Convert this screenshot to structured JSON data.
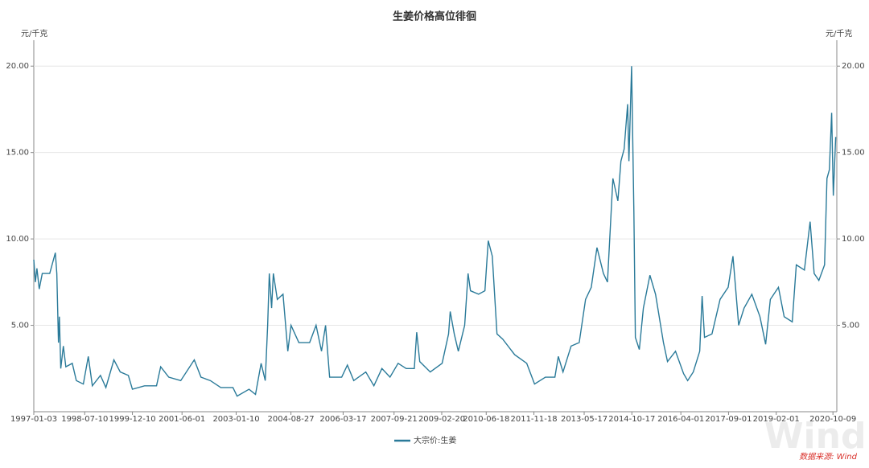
{
  "chart_data": {
    "type": "line",
    "title": "生姜价格高位徘徊",
    "ylabel": "元/千克",
    "y2label": "元/千克",
    "x": [
      "1997-01-03",
      "1997-01-20",
      "1997-02-06",
      "1997-03-03",
      "1997-04-05",
      "1997-06-25",
      "1997-08-25",
      "1997-09-10",
      "1997-09-28",
      "1997-10-08",
      "1997-10-23",
      "1997-11-20",
      "1997-12-17",
      "1998-02-25",
      "1998-04-10",
      "1998-06-25",
      "1998-08-18",
      "1998-10-01",
      "1998-12-28",
      "1999-02-25",
      "1999-05-23",
      "1999-07-31",
      "1999-10-27",
      "1999-12-10",
      "2000-04-20",
      "2000-08-28",
      "2000-10-12",
      "2001-01-08",
      "2001-05-18",
      "2001-10-12",
      "2001-12-24",
      "2002-04-05",
      "2002-07-27",
      "2002-12-06",
      "2003-01-20",
      "2003-05-30",
      "2003-08-08",
      "2003-10-08",
      "2003-11-22",
      "2003-12-18",
      "2004-01-05",
      "2004-01-30",
      "2004-02-18",
      "2004-04-01",
      "2004-06-02",
      "2004-07-24",
      "2004-08-28",
      "2004-11-21",
      "2005-03-18",
      "2005-05-27",
      "2005-07-25",
      "2005-09-07",
      "2005-10-21",
      "2006-03-01",
      "2006-05-02",
      "2006-07-10",
      "2006-11-18",
      "2007-02-14",
      "2007-05-12",
      "2007-08-08",
      "2007-11-04",
      "2008-01-31",
      "2008-04-28",
      "2008-05-24",
      "2008-06-26",
      "2008-10-18",
      "2009-02-24",
      "2009-05-05",
      "2009-05-23",
      "2009-07-06",
      "2009-08-19",
      "2009-10-27",
      "2009-12-03",
      "2009-12-29",
      "2010-03-27",
      "2010-06-04",
      "2010-07-10",
      "2010-08-23",
      "2010-10-13",
      "2010-12-14",
      "2011-04-23",
      "2011-09-01",
      "2011-11-25",
      "2012-03-22",
      "2012-07-03",
      "2012-08-09",
      "2012-09-29",
      "2012-12-26",
      "2013-03-24",
      "2013-06-01",
      "2013-08-02",
      "2013-10-03",
      "2013-12-12",
      "2014-01-25",
      "2014-03-25",
      "2014-05-18",
      "2014-06-20",
      "2014-07-25",
      "2014-09-01",
      "2014-09-15",
      "2014-10-14",
      "2014-11-08",
      "2014-11-24",
      "2015-01-06",
      "2015-02-19",
      "2015-05-01",
      "2015-07-01",
      "2015-09-25",
      "2015-11-08",
      "2016-02-03",
      "2016-05-01",
      "2016-06-14",
      "2016-08-14",
      "2016-10-23",
      "2016-11-18",
      "2016-12-14",
      "2017-03-05",
      "2017-06-01",
      "2017-08-28",
      "2017-10-19",
      "2017-12-20",
      "2018-02-17",
      "2018-05-12",
      "2018-08-08",
      "2018-10-09",
      "2018-11-29",
      "2019-02-25",
      "2019-04-28",
      "2019-07-25",
      "2019-09-07",
      "2019-12-04",
      "2020-02-04",
      "2020-03-19",
      "2020-05-09",
      "2020-07-10",
      "2020-08-05",
      "2020-08-31",
      "2020-09-25",
      "2020-10-13",
      "2020-11-08"
    ],
    "series": [
      {
        "name": "大宗价:生姜",
        "color": "#2a7a99",
        "values": [
          8.8,
          7.5,
          8.3,
          7.1,
          8.0,
          8.0,
          9.2,
          8.0,
          4.0,
          5.5,
          2.5,
          3.8,
          2.6,
          2.8,
          1.8,
          1.6,
          3.2,
          1.5,
          2.1,
          1.4,
          3.0,
          2.3,
          2.1,
          1.3,
          1.5,
          1.5,
          2.6,
          2.0,
          1.8,
          3.0,
          2.0,
          1.8,
          1.4,
          1.4,
          0.9,
          1.3,
          1.0,
          2.8,
          1.8,
          5.0,
          8.0,
          6.0,
          8.0,
          6.5,
          6.8,
          3.5,
          5.0,
          4.0,
          4.0,
          5.0,
          3.5,
          5.0,
          2.0,
          2.0,
          2.7,
          1.8,
          2.3,
          1.5,
          2.5,
          2.0,
          2.8,
          2.5,
          2.5,
          4.6,
          2.9,
          2.3,
          2.8,
          4.5,
          5.8,
          4.5,
          3.5,
          5.0,
          8.0,
          7.0,
          6.8,
          7.0,
          9.9,
          9.0,
          4.5,
          4.2,
          3.3,
          2.8,
          1.6,
          2.0,
          2.0,
          3.2,
          2.3,
          3.8,
          4.0,
          6.5,
          7.2,
          9.5,
          8.0,
          7.5,
          13.5,
          12.2,
          14.5,
          15.2,
          17.8,
          14.5,
          20.0,
          11.5,
          4.3,
          3.6,
          6.0,
          7.9,
          6.8,
          4.0,
          2.9,
          3.5,
          2.2,
          1.8,
          2.3,
          3.5,
          6.7,
          4.3,
          4.5,
          6.5,
          7.2,
          9.0,
          5.0,
          6.0,
          6.8,
          5.5,
          3.9,
          6.5,
          7.2,
          5.5,
          5.2,
          8.5,
          8.2,
          11.0,
          8.0,
          7.6,
          8.5,
          13.5,
          14.0,
          17.3,
          12.5,
          15.9
        ]
      }
    ],
    "xlim": [
      "1997-01-03",
      "2020-11-20"
    ],
    "xticks": [
      "1997-01-03",
      "1998-07-10",
      "1999-12-10",
      "2001-06-01",
      "2003-01-10",
      "2004-08-27",
      "2006-03-17",
      "2007-09-21",
      "2009-02-20",
      "2010-06-18",
      "2011-11-18",
      "2013-05-17",
      "2014-10-17",
      "2016-04-01",
      "2017-09-01",
      "2019-02-01",
      "2020-10-09"
    ],
    "ylim": [
      0,
      21.5
    ],
    "yticks": [
      {
        "value": 5,
        "label": "5.00"
      },
      {
        "value": 10,
        "label": "10.00"
      },
      {
        "value": 15,
        "label": "15.00"
      },
      {
        "value": 20,
        "label": "20.00"
      }
    ],
    "y2lim": [
      0,
      21.5
    ],
    "y2ticks": [
      {
        "value": 5,
        "label": "5.00"
      },
      {
        "value": 10,
        "label": "10.00"
      },
      {
        "value": 15,
        "label": "15.00"
      },
      {
        "value": 20,
        "label": "20.00"
      }
    ],
    "grid": true,
    "source": "数据来源: Wind",
    "watermark": "Wind"
  }
}
